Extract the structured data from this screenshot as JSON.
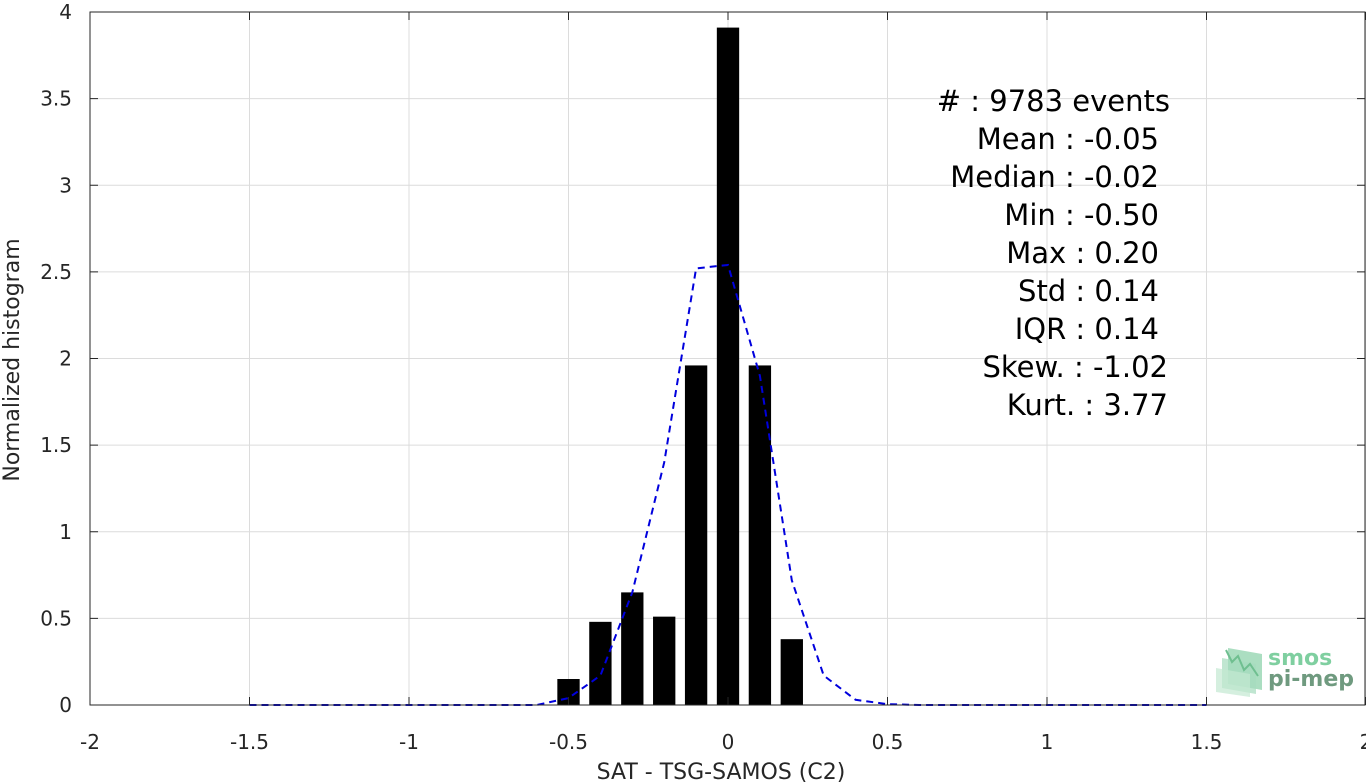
{
  "chart_data": {
    "type": "bar",
    "xlabel": "SAT - TSG-SAMOS (C2)",
    "ylabel": "Normalized histogram",
    "xlim": [
      -2,
      2
    ],
    "ylim": [
      0,
      4
    ],
    "xticks": [
      -2,
      -1.5,
      -1,
      -0.5,
      0,
      0.5,
      1,
      1.5,
      2
    ],
    "xtick_labels": [
      "-2",
      "-1.5",
      "-1",
      "-0.5",
      "0",
      "0.5",
      "1",
      "1.5",
      "2"
    ],
    "yticks": [
      0,
      0.5,
      1,
      1.5,
      2,
      2.5,
      3,
      3.5,
      4
    ],
    "ytick_labels": [
      "0",
      "0.5",
      "1",
      "1.5",
      "2",
      "2.5",
      "3",
      "3.5",
      "4"
    ],
    "grid": true,
    "bar_width": 0.07,
    "bar_color": "#000000",
    "series": [
      {
        "kind": "bars",
        "x": [
          -0.5,
          -0.4,
          -0.3,
          -0.2,
          -0.1,
          0.0,
          0.1,
          0.2
        ],
        "values": [
          0.15,
          0.48,
          0.65,
          0.51,
          1.96,
          3.91,
          1.96,
          0.38
        ]
      },
      {
        "kind": "dashed-line",
        "color": "#0000dd",
        "x": [
          -1.5,
          -1.4,
          -1.3,
          -1.2,
          -1.1,
          -1.0,
          -0.9,
          -0.8,
          -0.7,
          -0.6,
          -0.5,
          -0.4,
          -0.3,
          -0.2,
          -0.1,
          0.0,
          0.1,
          0.2,
          0.3,
          0.4,
          0.5,
          0.6,
          0.7,
          0.8,
          0.9,
          1.0,
          1.1,
          1.2,
          1.3,
          1.4,
          1.5
        ],
        "values": [
          0,
          0,
          0,
          0,
          0,
          0,
          0,
          0,
          0,
          0,
          0.04,
          0.17,
          0.65,
          1.4,
          2.52,
          2.54,
          1.9,
          0.72,
          0.17,
          0.03,
          0.005,
          0,
          0,
          0,
          0,
          0,
          0,
          0,
          0,
          0,
          0
        ]
      }
    ]
  },
  "stats": [
    {
      "label": "#  ",
      "value": "9783 events"
    },
    {
      "label": "Mean",
      "value": "-0.05"
    },
    {
      "label": "Median",
      "value": "-0.02"
    },
    {
      "label": "Min",
      "value": "-0.50"
    },
    {
      "label": "Max",
      "value": "0.20"
    },
    {
      "label": "Std",
      "value": "0.14"
    },
    {
      "label": "IQR",
      "value": "0.14"
    },
    {
      "label": "Skew.",
      "value": "-1.02"
    },
    {
      "label": "Kurt.",
      "value": "3.77"
    }
  ],
  "stat_lines": [
    "#  : 9783 events",
    "Mean : -0.05",
    "Median : -0.02",
    "Min : -0.50",
    "Max : 0.20",
    "Std : 0.14",
    "IQR : 0.14",
    "Skew. : -1.02",
    "Kurt. : 3.77"
  ],
  "logo": {
    "line1": "smos",
    "line2": "pi-mep",
    "color1": "#7fcfa0",
    "color2": "#6f9a7f"
  }
}
